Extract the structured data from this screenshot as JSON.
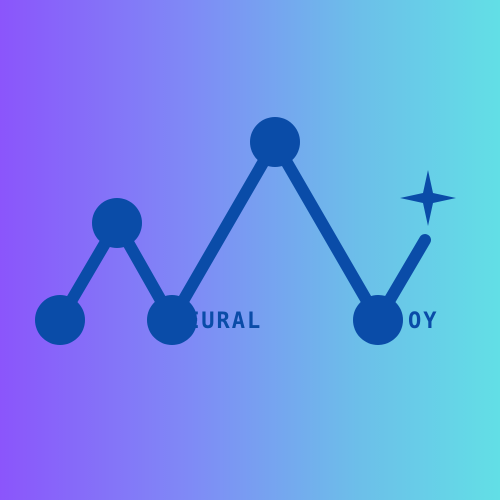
{
  "logo": {
    "primary_color": "#0a4ca8",
    "gradient_colors": [
      "#8b55fb",
      "#62dfe6"
    ],
    "word_main": "EURAL",
    "word_end": "OY",
    "sparkle_icon": "four-point-star-icon"
  }
}
